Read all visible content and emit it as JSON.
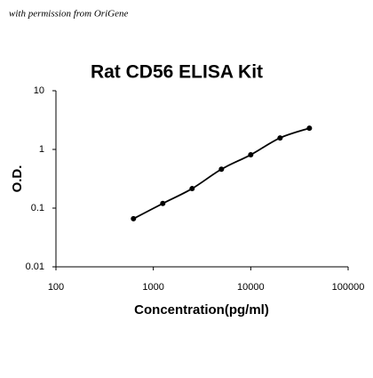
{
  "chart_data": {
    "type": "scatter",
    "title": "Rat CD56 ELISA Kit",
    "annotation": "with permission from OriGene",
    "x_label": "Concentration(pg/ml)",
    "y_label": "O.D.",
    "x": [
      625,
      1250,
      2500,
      5000,
      10000,
      20000,
      40000
    ],
    "values": [
      0.066,
      0.12,
      0.215,
      0.46,
      0.81,
      1.57,
      2.3
    ],
    "color": "#000000",
    "x_log": true,
    "y_log": true,
    "xlim": [
      100,
      100000
    ],
    "xticks": [
      100,
      1000,
      10000,
      100000
    ],
    "ylim": [
      0.01,
      10
    ],
    "yticks": [
      0.01,
      0.1,
      1,
      10
    ],
    "curve": true
  }
}
